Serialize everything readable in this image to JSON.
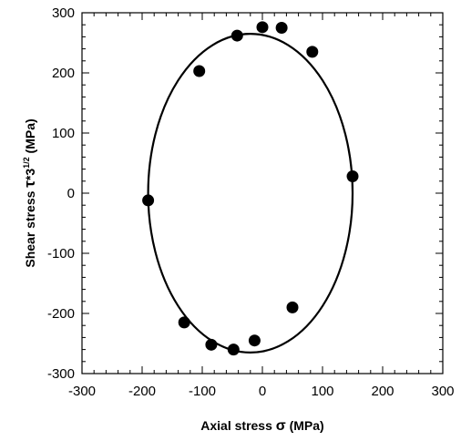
{
  "chart_data": {
    "type": "scatter",
    "xlabel": {
      "prefix": "Axial stress ",
      "symbol": "σ",
      "suffix": " (MPa)"
    },
    "ylabel": {
      "prefix": "Shear stress ",
      "symbol": "τ",
      "mid": "*3",
      "sup": "1/2",
      "suffix": " (MPa)"
    },
    "xlim": [
      -300,
      300
    ],
    "ylim": [
      -300,
      300
    ],
    "xticks": [
      -300,
      -200,
      -100,
      0,
      100,
      200,
      300
    ],
    "yticks": [
      -300,
      -200,
      -100,
      0,
      100,
      200,
      300
    ],
    "xticks_minor_step": 20,
    "yticks_minor_step": 20,
    "grid": false,
    "series": [
      {
        "kind": "points",
        "color": "#000000",
        "x": [
          -190,
          -130,
          -85,
          -48,
          -13,
          50,
          150,
          83,
          32,
          0,
          -42,
          -105
        ],
        "y": [
          -12,
          -215,
          -252,
          -260,
          -245,
          -190,
          28,
          235,
          275,
          276,
          262,
          203
        ]
      },
      {
        "kind": "fit-ellipse",
        "color": "#000000",
        "center": [
          -20,
          0
        ],
        "semi_axis_x": 170,
        "semi_axis_y": 265
      }
    ]
  }
}
